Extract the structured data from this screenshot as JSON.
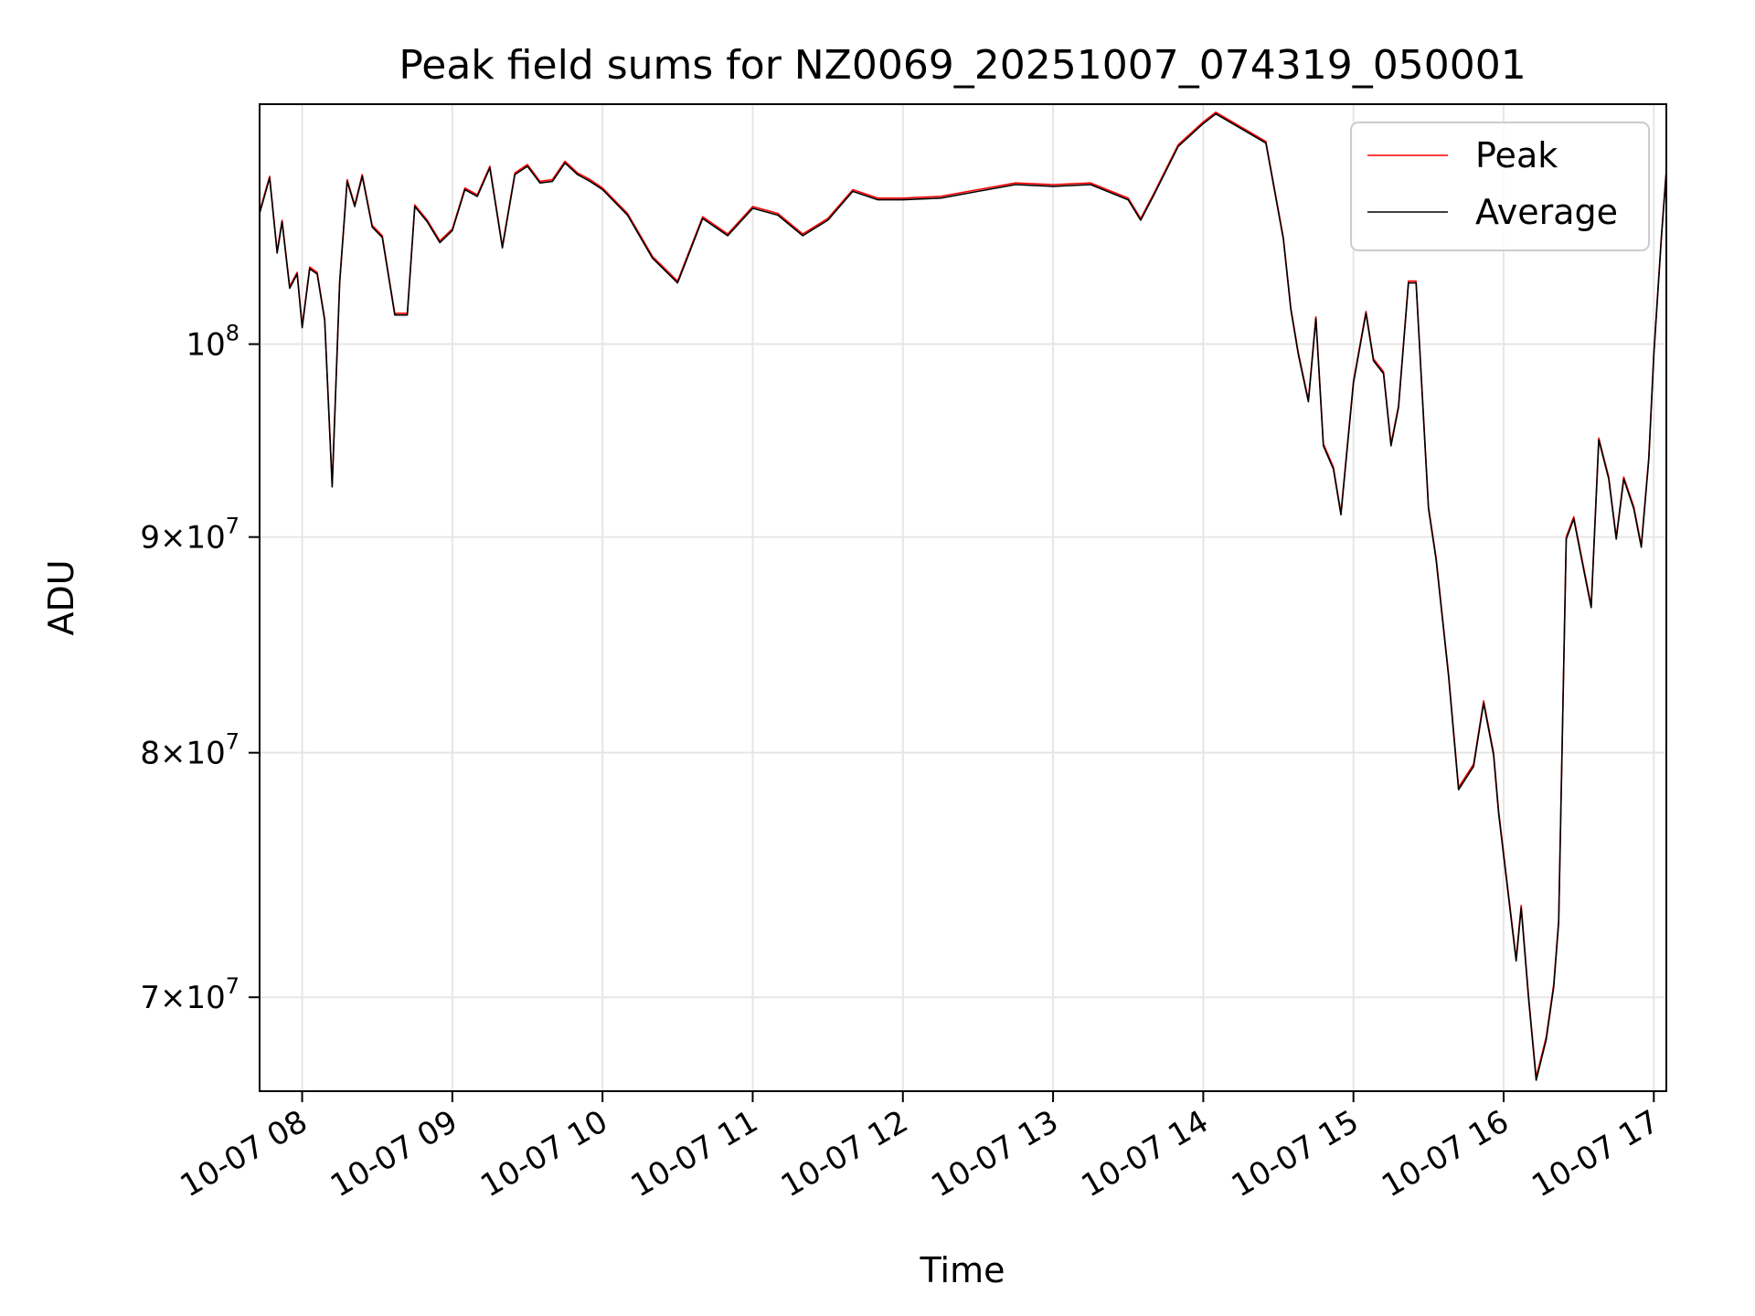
{
  "chart_data": {
    "type": "line",
    "title": "Peak field sums for NZ0069_20251007_074319_050001",
    "xlabel": "Time",
    "ylabel": "ADU",
    "yscale": "log",
    "grid": true,
    "legend_position": "top-right",
    "xlim": [
      "2025-10-07T07:43",
      "2025-10-07T17:05"
    ],
    "ylim": [
      66500000,
      114000000
    ],
    "x_ticks": [
      {
        "value": "2025-10-07T08:00",
        "label": "10-07 08"
      },
      {
        "value": "2025-10-07T09:00",
        "label": "10-07 09"
      },
      {
        "value": "2025-10-07T10:00",
        "label": "10-07 10"
      },
      {
        "value": "2025-10-07T11:00",
        "label": "10-07 11"
      },
      {
        "value": "2025-10-07T12:00",
        "label": "10-07 12"
      },
      {
        "value": "2025-10-07T13:00",
        "label": "10-07 13"
      },
      {
        "value": "2025-10-07T14:00",
        "label": "10-07 14"
      },
      {
        "value": "2025-10-07T15:00",
        "label": "10-07 15"
      },
      {
        "value": "2025-10-07T16:00",
        "label": "10-07 16"
      },
      {
        "value": "2025-10-07T17:00",
        "label": "10-07 17"
      }
    ],
    "y_ticks": [
      {
        "value": 70000000,
        "mantissa": "7×",
        "base": "10",
        "exp": "7"
      },
      {
        "value": 80000000,
        "mantissa": "8×",
        "base": "10",
        "exp": "7"
      },
      {
        "value": 90000000,
        "mantissa": "9×",
        "base": "10",
        "exp": "7"
      },
      {
        "value": 100000000,
        "mantissa": "",
        "base": "10",
        "exp": "8"
      }
    ],
    "series": [
      {
        "name": "Peak",
        "color": "#ff0000",
        "x": [
          "2025-10-07T07:43",
          "2025-10-07T07:47",
          "2025-10-07T07:50",
          "2025-10-07T07:52",
          "2025-10-07T07:55",
          "2025-10-07T07:58",
          "2025-10-07T08:00",
          "2025-10-07T08:03",
          "2025-10-07T08:06",
          "2025-10-07T08:09",
          "2025-10-07T08:12",
          "2025-10-07T08:15",
          "2025-10-07T08:18",
          "2025-10-07T08:21",
          "2025-10-07T08:24",
          "2025-10-07T08:28",
          "2025-10-07T08:32",
          "2025-10-07T08:37",
          "2025-10-07T08:42",
          "2025-10-07T08:45",
          "2025-10-07T08:50",
          "2025-10-07T08:55",
          "2025-10-07T09:00",
          "2025-10-07T09:05",
          "2025-10-07T09:10",
          "2025-10-07T09:15",
          "2025-10-07T09:20",
          "2025-10-07T09:25",
          "2025-10-07T09:30",
          "2025-10-07T09:35",
          "2025-10-07T09:40",
          "2025-10-07T09:45",
          "2025-10-07T09:50",
          "2025-10-07T09:55",
          "2025-10-07T10:00",
          "2025-10-07T10:10",
          "2025-10-07T10:20",
          "2025-10-07T10:30",
          "2025-10-07T10:40",
          "2025-10-07T10:50",
          "2025-10-07T11:00",
          "2025-10-07T11:10",
          "2025-10-07T11:20",
          "2025-10-07T11:30",
          "2025-10-07T11:40",
          "2025-10-07T11:50",
          "2025-10-07T12:00",
          "2025-10-07T12:15",
          "2025-10-07T12:30",
          "2025-10-07T12:45",
          "2025-10-07T13:00",
          "2025-10-07T13:15",
          "2025-10-07T13:30",
          "2025-10-07T13:35",
          "2025-10-07T13:40",
          "2025-10-07T13:50",
          "2025-10-07T14:00",
          "2025-10-07T14:05",
          "2025-10-07T14:15",
          "2025-10-07T14:25",
          "2025-10-07T14:32",
          "2025-10-07T14:35",
          "2025-10-07T14:38",
          "2025-10-07T14:42",
          "2025-10-07T14:45",
          "2025-10-07T14:48",
          "2025-10-07T14:52",
          "2025-10-07T14:55",
          "2025-10-07T15:00",
          "2025-10-07T15:05",
          "2025-10-07T15:08",
          "2025-10-07T15:12",
          "2025-10-07T15:15",
          "2025-10-07T15:18",
          "2025-10-07T15:22",
          "2025-10-07T15:25",
          "2025-10-07T15:30",
          "2025-10-07T15:33",
          "2025-10-07T15:38",
          "2025-10-07T15:42",
          "2025-10-07T15:48",
          "2025-10-07T15:52",
          "2025-10-07T15:56",
          "2025-10-07T15:58",
          "2025-10-07T16:02",
          "2025-10-07T16:05",
          "2025-10-07T16:07",
          "2025-10-07T16:10",
          "2025-10-07T16:13",
          "2025-10-07T16:17",
          "2025-10-07T16:20",
          "2025-10-07T16:22",
          "2025-10-07T16:25",
          "2025-10-07T16:28",
          "2025-10-07T16:32",
          "2025-10-07T16:35",
          "2025-10-07T16:38",
          "2025-10-07T16:42",
          "2025-10-07T16:45",
          "2025-10-07T16:48",
          "2025-10-07T16:52",
          "2025-10-07T16:55",
          "2025-10-07T16:58",
          "2025-10-07T17:00",
          "2025-10-07T17:03",
          "2025-10-07T17:05"
        ],
        "values": [
          107500000,
          109600000,
          105200000,
          107000000,
          103200000,
          104000000,
          101000000,
          104300000,
          104000000,
          101400000,
          92600000,
          103500000,
          109400000,
          107900000,
          109700000,
          106700000,
          106100000,
          101700000,
          101700000,
          107900000,
          107000000,
          105800000,
          106500000,
          108900000,
          108500000,
          110200000,
          105500000,
          109800000,
          110300000,
          109300000,
          109400000,
          110500000,
          109800000,
          109400000,
          108900000,
          107400000,
          104900000,
          103500000,
          107200000,
          106200000,
          107800000,
          107400000,
          106200000,
          107100000,
          108800000,
          108300000,
          108300000,
          108400000,
          108800000,
          109200000,
          109100000,
          109200000,
          108300000,
          107100000,
          108500000,
          111500000,
          112900000,
          113500000,
          112600000,
          111700000,
          106000000,
          102000000,
          99500000,
          97000000,
          101500000,
          94700000,
          93500000,
          91200000,
          98000000,
          101800000,
          99200000,
          98500000,
          94700000,
          96700000,
          103500000,
          103500000,
          91500000,
          89000000,
          83500000,
          78500000,
          79500000,
          82300000,
          80000000,
          77500000,
          74000000,
          71500000,
          73600000,
          70000000,
          67000000,
          68500000,
          70500000,
          73000000,
          90000000,
          91000000,
          88500000,
          86700000,
          95000000,
          93000000,
          90000000,
          93000000,
          91500000,
          89600000,
          94000000,
          99500000,
          106000000,
          110000000
        ]
      },
      {
        "name": "Average",
        "color": "#000000",
        "x": [
          "2025-10-07T07:43",
          "2025-10-07T07:47",
          "2025-10-07T07:50",
          "2025-10-07T07:52",
          "2025-10-07T07:55",
          "2025-10-07T07:58",
          "2025-10-07T08:00",
          "2025-10-07T08:03",
          "2025-10-07T08:06",
          "2025-10-07T08:09",
          "2025-10-07T08:12",
          "2025-10-07T08:15",
          "2025-10-07T08:18",
          "2025-10-07T08:21",
          "2025-10-07T08:24",
          "2025-10-07T08:28",
          "2025-10-07T08:32",
          "2025-10-07T08:37",
          "2025-10-07T08:42",
          "2025-10-07T08:45",
          "2025-10-07T08:50",
          "2025-10-07T08:55",
          "2025-10-07T09:00",
          "2025-10-07T09:05",
          "2025-10-07T09:10",
          "2025-10-07T09:15",
          "2025-10-07T09:20",
          "2025-10-07T09:25",
          "2025-10-07T09:30",
          "2025-10-07T09:35",
          "2025-10-07T09:40",
          "2025-10-07T09:45",
          "2025-10-07T09:50",
          "2025-10-07T09:55",
          "2025-10-07T10:00",
          "2025-10-07T10:10",
          "2025-10-07T10:20",
          "2025-10-07T10:30",
          "2025-10-07T10:40",
          "2025-10-07T10:50",
          "2025-10-07T11:00",
          "2025-10-07T11:10",
          "2025-10-07T11:20",
          "2025-10-07T11:30",
          "2025-10-07T11:40",
          "2025-10-07T11:50",
          "2025-10-07T12:00",
          "2025-10-07T12:15",
          "2025-10-07T12:30",
          "2025-10-07T12:45",
          "2025-10-07T13:00",
          "2025-10-07T13:15",
          "2025-10-07T13:30",
          "2025-10-07T13:35",
          "2025-10-07T13:40",
          "2025-10-07T13:50",
          "2025-10-07T14:00",
          "2025-10-07T14:05",
          "2025-10-07T14:15",
          "2025-10-07T14:25",
          "2025-10-07T14:32",
          "2025-10-07T14:35",
          "2025-10-07T14:38",
          "2025-10-07T14:42",
          "2025-10-07T14:45",
          "2025-10-07T14:48",
          "2025-10-07T14:52",
          "2025-10-07T14:55",
          "2025-10-07T15:00",
          "2025-10-07T15:05",
          "2025-10-07T15:08",
          "2025-10-07T15:12",
          "2025-10-07T15:15",
          "2025-10-07T15:18",
          "2025-10-07T15:22",
          "2025-10-07T15:25",
          "2025-10-07T15:30",
          "2025-10-07T15:33",
          "2025-10-07T15:38",
          "2025-10-07T15:42",
          "2025-10-07T15:48",
          "2025-10-07T15:52",
          "2025-10-07T15:56",
          "2025-10-07T15:58",
          "2025-10-07T16:02",
          "2025-10-07T16:05",
          "2025-10-07T16:07",
          "2025-10-07T16:10",
          "2025-10-07T16:13",
          "2025-10-07T16:17",
          "2025-10-07T16:20",
          "2025-10-07T16:22",
          "2025-10-07T16:25",
          "2025-10-07T16:28",
          "2025-10-07T16:32",
          "2025-10-07T16:35",
          "2025-10-07T16:38",
          "2025-10-07T16:42",
          "2025-10-07T16:45",
          "2025-10-07T16:48",
          "2025-10-07T16:52",
          "2025-10-07T16:55",
          "2025-10-07T16:58",
          "2025-10-07T17:00",
          "2025-10-07T17:03",
          "2025-10-07T17:05"
        ],
        "values": [
          107400000,
          109500000,
          105100000,
          106900000,
          103100000,
          103900000,
          100900000,
          104200000,
          103900000,
          101300000,
          92500000,
          103400000,
          109300000,
          107800000,
          109600000,
          106600000,
          106000000,
          101600000,
          101600000,
          107800000,
          106900000,
          105700000,
          106400000,
          108800000,
          108400000,
          110100000,
          105400000,
          109700000,
          110200000,
          109200000,
          109300000,
          110400000,
          109700000,
          109300000,
          108800000,
          107300000,
          104800000,
          103400000,
          107100000,
          106100000,
          107700000,
          107300000,
          106100000,
          107000000,
          108700000,
          108200000,
          108200000,
          108300000,
          108700000,
          109100000,
          109000000,
          109100000,
          108200000,
          107000000,
          108400000,
          111400000,
          112800000,
          113400000,
          112500000,
          111600000,
          105900000,
          101900000,
          99400000,
          96900000,
          101400000,
          94600000,
          93400000,
          91100000,
          97900000,
          101700000,
          99100000,
          98400000,
          94600000,
          96600000,
          103400000,
          103400000,
          91400000,
          88900000,
          83400000,
          78400000,
          79400000,
          82200000,
          79900000,
          77400000,
          73900000,
          71400000,
          73500000,
          69900000,
          66900000,
          68400000,
          70400000,
          72900000,
          89900000,
          90900000,
          88400000,
          86600000,
          94900000,
          92900000,
          89900000,
          92900000,
          91400000,
          89500000,
          93900000,
          99400000,
          105900000,
          109900000
        ]
      }
    ]
  }
}
